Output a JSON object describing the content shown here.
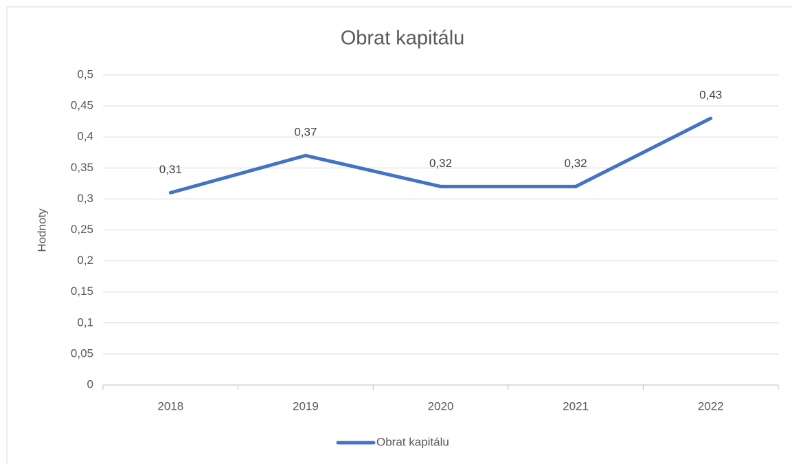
{
  "chart_data": {
    "type": "line",
    "title": "Obrat kapitálu",
    "y_label": "Hodnoty",
    "categories": [
      "2018",
      "2019",
      "2020",
      "2021",
      "2022"
    ],
    "series": [
      {
        "name": "Obrat kapitálu",
        "color": "#4472c4",
        "values": [
          0.31,
          0.37,
          0.32,
          0.32,
          0.43
        ],
        "value_labels": [
          "0,31",
          "0,37",
          "0,32",
          "0,32",
          "0,43"
        ]
      }
    ],
    "ylim": [
      0,
      0.5
    ],
    "yticks": [
      0,
      {
        "value": 0.05,
        "label": "0,05"
      },
      {
        "value": 0.1,
        "label": "0,1"
      },
      {
        "value": 0.15,
        "label": "0,15"
      },
      {
        "value": 0.2,
        "label": "0,2"
      },
      {
        "value": 0.25,
        "label": "0,25"
      },
      {
        "value": 0.3,
        "label": "0,3"
      },
      {
        "value": 0.35,
        "label": "0,35"
      },
      {
        "value": 0.4,
        "label": "0,4"
      },
      {
        "value": 0.45,
        "label": "0,45"
      },
      {
        "value": 0.5,
        "label": "0,5"
      }
    ],
    "grid": true,
    "legend": "bottom"
  }
}
